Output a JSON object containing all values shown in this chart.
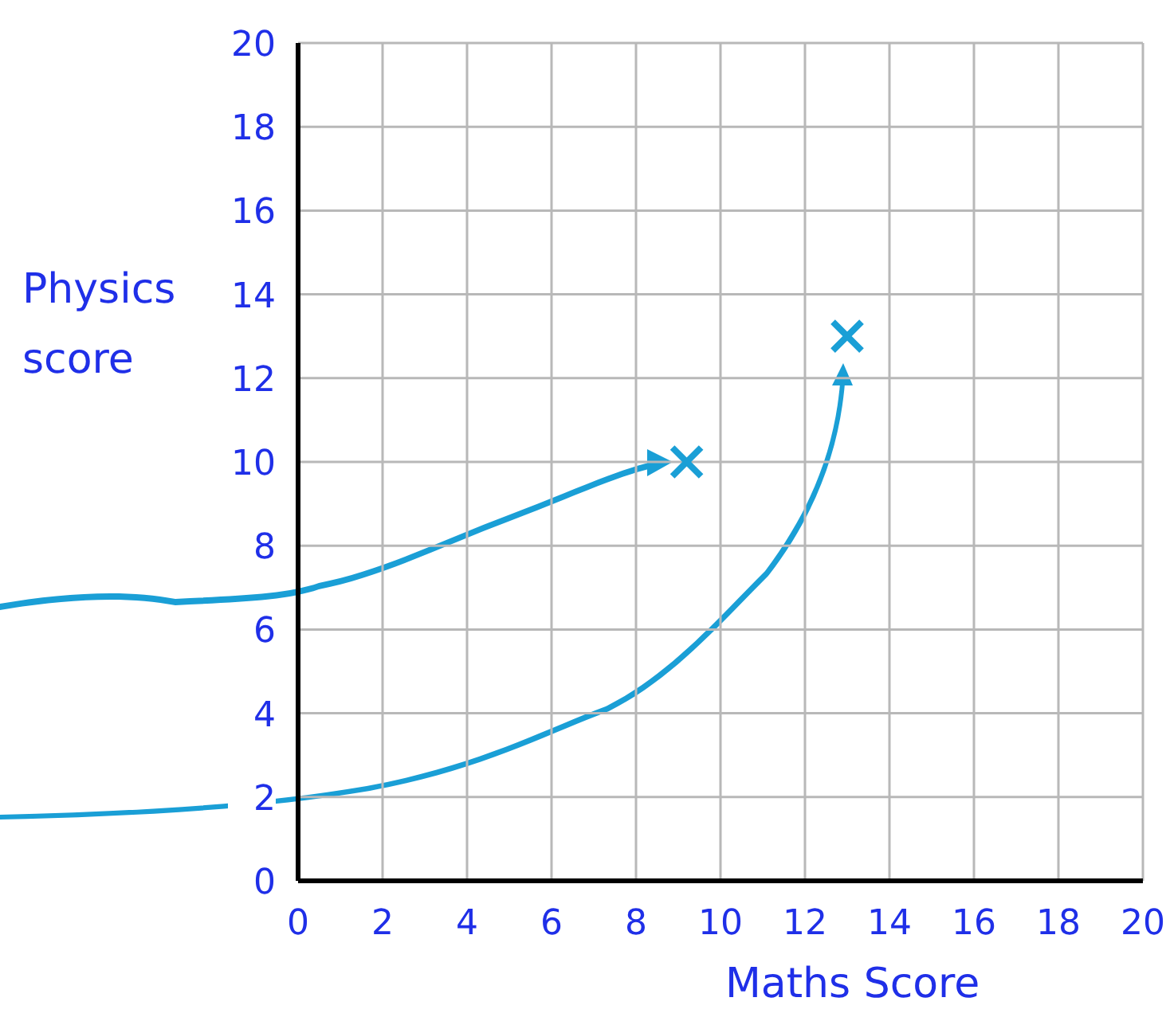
{
  "chart_data": {
    "type": "scatter",
    "xlabel": "Maths Score",
    "ylabel": "Physics score",
    "x": [
      9.2,
      13
    ],
    "values": [
      10,
      13
    ],
    "color": "#1a9fd6",
    "marker": "cross",
    "xlim": [
      0,
      20
    ],
    "ylim": [
      0,
      20
    ],
    "xticks": [
      0,
      2,
      4,
      6,
      8,
      10,
      12,
      14,
      16,
      18,
      20
    ],
    "yticks": [
      0,
      2,
      4,
      6,
      8,
      10,
      12,
      14,
      16,
      18,
      20
    ],
    "grid": true
  }
}
